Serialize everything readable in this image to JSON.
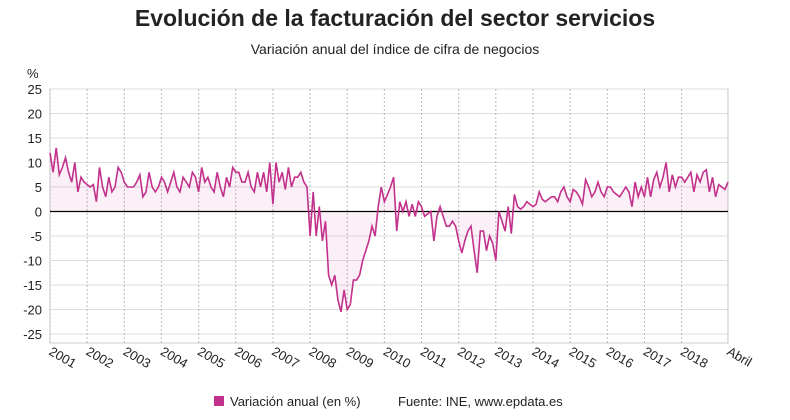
{
  "chart_data": {
    "type": "line",
    "title": "Evolución de la facturación del sector servicios",
    "subtitle": "Variación anual del índice de cifra de negocios",
    "y_unit": "%",
    "source": "Fuente: INE, www.epdata.es",
    "categories": [
      "2001",
      null,
      null,
      null,
      null,
      null,
      null,
      null,
      null,
      null,
      null,
      null,
      "2002",
      null,
      null,
      null,
      null,
      null,
      null,
      null,
      null,
      null,
      null,
      null,
      "2003",
      null,
      null,
      null,
      null,
      null,
      null,
      null,
      null,
      null,
      null,
      null,
      "2004",
      null,
      null,
      null,
      null,
      null,
      null,
      null,
      null,
      null,
      null,
      null,
      "2005",
      null,
      null,
      null,
      null,
      null,
      null,
      null,
      null,
      null,
      null,
      null,
      "2006",
      null,
      null,
      null,
      null,
      null,
      null,
      null,
      null,
      null,
      null,
      null,
      "2007",
      null,
      null,
      null,
      null,
      null,
      null,
      null,
      null,
      null,
      null,
      null,
      "2008",
      null,
      null,
      null,
      null,
      null,
      null,
      null,
      null,
      null,
      null,
      null,
      "2009",
      null,
      null,
      null,
      null,
      null,
      null,
      null,
      null,
      null,
      null,
      null,
      "2010",
      null,
      null,
      null,
      null,
      null,
      null,
      null,
      null,
      null,
      null,
      null,
      "2011",
      null,
      null,
      null,
      null,
      null,
      null,
      null,
      null,
      null,
      null,
      null,
      "2012",
      null,
      null,
      null,
      null,
      null,
      null,
      null,
      null,
      null,
      null,
      null,
      "2013",
      null,
      null,
      null,
      null,
      null,
      null,
      null,
      null,
      null,
      null,
      null,
      "2014",
      null,
      null,
      null,
      null,
      null,
      null,
      null,
      null,
      null,
      null,
      null,
      "2015",
      null,
      null,
      null,
      null,
      null,
      null,
      null,
      null,
      null,
      null,
      null,
      "2016",
      null,
      null,
      null,
      null,
      null,
      null,
      null,
      null,
      null,
      null,
      null,
      "2017",
      null,
      null,
      null,
      null,
      null,
      null,
      null,
      null,
      null,
      null,
      null,
      "2018",
      null,
      null,
      null,
      null,
      null,
      null,
      null,
      null,
      null,
      null,
      null,
      null,
      null,
      null,
      "Abril"
    ],
    "series": [
      {
        "name": "Variación anual (en %)",
        "color": "#c2318b",
        "values": [
          12,
          8,
          13,
          7.5,
          9,
          11,
          8,
          6,
          10,
          4,
          7,
          6,
          5.5,
          5,
          5.5,
          2,
          9,
          5,
          3,
          7,
          4,
          5,
          9,
          8,
          6,
          5,
          5,
          5,
          6,
          7.5,
          3,
          4,
          8,
          5,
          4,
          5,
          7,
          6,
          4,
          6,
          8,
          5,
          4,
          7,
          6,
          5,
          8,
          7,
          4,
          9,
          6,
          7,
          5,
          4,
          8,
          5,
          3,
          7,
          5,
          9,
          8,
          8,
          6,
          6,
          8,
          5,
          4,
          8,
          5,
          8,
          4,
          10,
          1.5,
          10,
          6,
          8,
          4.5,
          9,
          5,
          7,
          7,
          8,
          6,
          5,
          -5,
          4,
          -5,
          1,
          -6,
          -2,
          -13,
          -15,
          -13,
          -18,
          -20.5,
          -16,
          -20,
          -19,
          -14,
          -14,
          -13,
          -10,
          -8,
          -6,
          -3,
          -5,
          1,
          5,
          2,
          3.5,
          5,
          7,
          -4,
          2,
          0,
          2,
          -1,
          1.5,
          -1,
          2,
          1,
          -1,
          -0.5,
          0,
          -6,
          -1,
          1,
          -1,
          -3,
          -3,
          -2,
          -3,
          -6,
          -8.5,
          -6,
          -4,
          -3,
          -8,
          -12.5,
          -4,
          -4,
          -8,
          -5,
          -6.5,
          -10,
          0,
          -2,
          -4,
          1,
          -4.5,
          3.5,
          1,
          0.5,
          1,
          2,
          1.5,
          1,
          1.5,
          4,
          2.5,
          2,
          2.5,
          3,
          3,
          2,
          4,
          5,
          3,
          2,
          4.5,
          4,
          3,
          1.5,
          6.5,
          5,
          3,
          4,
          6,
          4,
          3,
          5,
          5,
          4,
          3.5,
          3,
          4,
          5,
          4,
          1,
          6,
          3,
          5,
          3,
          7,
          3,
          6.5,
          8,
          5,
          7,
          10,
          4,
          7.5,
          5,
          7,
          7,
          6,
          7,
          8,
          4,
          7.5,
          6,
          8,
          8.5,
          4,
          7,
          3,
          5.5,
          5,
          4.5,
          6
        ]
      }
    ],
    "ylim": [
      -25,
      25
    ],
    "yticks": [
      -25,
      -20,
      -15,
      -10,
      -5,
      0,
      5,
      10,
      15,
      20,
      25
    ],
    "grid": true
  }
}
